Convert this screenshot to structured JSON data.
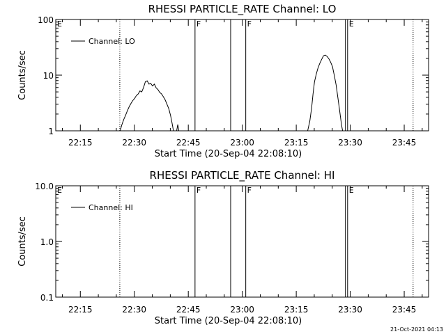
{
  "chart_data": [
    {
      "type": "line",
      "title": "RHESSI PARTICLE_RATE Channel: LO",
      "xlabel": "Start Time (20-Sep-04 22:08:10)",
      "ylabel": "Counts/sec",
      "yscale": "log",
      "ylim": [
        1,
        100
      ],
      "y_tick_labels": [
        "1",
        "10",
        "100"
      ],
      "y_tick_values": [
        1,
        10,
        100
      ],
      "x_tick_labels": [
        "22:15",
        "22:30",
        "22:45",
        "23:00",
        "23:15",
        "23:30",
        "23:45"
      ],
      "x_tick_minutes": [
        6.83,
        21.83,
        36.83,
        51.83,
        66.83,
        81.83,
        96.83
      ],
      "xlim_minutes": [
        0,
        103.6
      ],
      "legend": {
        "position": "top-left",
        "label": "Channel: LO"
      },
      "markers": [
        {
          "minute": 17.8,
          "style": "dotted",
          "label": ""
        },
        {
          "minute": 38.7,
          "style": "solid",
          "label": "F"
        },
        {
          "minute": 48.6,
          "style": "solid",
          "label": ""
        },
        {
          "minute": 52.8,
          "style": "solid",
          "label": "F"
        },
        {
          "minute": 80.5,
          "style": "solid",
          "label": ""
        },
        {
          "minute": 81.1,
          "style": "solid",
          "label": "E"
        },
        {
          "minute": 99.3,
          "style": "dotted",
          "label": ""
        }
      ],
      "start_label": "E",
      "series": [
        {
          "name": "Channel: LO",
          "segments": [
            [
              [
                17.9,
                1.0
              ],
              [
                18.4,
                1.3
              ],
              [
                18.9,
                1.6
              ],
              [
                19.4,
                1.9
              ],
              [
                19.9,
                2.3
              ],
              [
                20.4,
                2.7
              ],
              [
                20.9,
                3.1
              ],
              [
                21.4,
                3.5
              ],
              [
                21.9,
                3.8
              ],
              [
                22.4,
                4.3
              ],
              [
                22.9,
                4.6
              ],
              [
                23.4,
                5.2
              ],
              [
                23.9,
                5.0
              ],
              [
                24.4,
                6.0
              ],
              [
                24.9,
                7.6
              ],
              [
                25.4,
                7.9
              ],
              [
                25.9,
                6.9
              ],
              [
                26.4,
                7.1
              ],
              [
                26.9,
                6.4
              ],
              [
                27.4,
                6.9
              ],
              [
                27.9,
                5.9
              ],
              [
                28.4,
                5.5
              ],
              [
                28.9,
                4.9
              ],
              [
                29.4,
                4.6
              ],
              [
                29.9,
                4.1
              ],
              [
                30.4,
                3.6
              ],
              [
                30.9,
                3.0
              ],
              [
                31.4,
                2.5
              ],
              [
                31.9,
                1.9
              ],
              [
                32.3,
                1.4
              ],
              [
                32.7,
                1.0
              ]
            ],
            [
              [
                33.6,
                1.0
              ],
              [
                33.9,
                1.3
              ],
              [
                34.2,
                1.0
              ]
            ],
            [
              [
                70.0,
                1.0
              ],
              [
                70.6,
                1.5
              ],
              [
                71.1,
                2.6
              ],
              [
                71.5,
                4.6
              ],
              [
                71.9,
                7.6
              ],
              [
                72.4,
                10.5
              ],
              [
                72.9,
                13.7
              ],
              [
                73.4,
                16.4
              ],
              [
                73.9,
                19.2
              ],
              [
                74.4,
                22.3
              ],
              [
                74.9,
                22.9
              ],
              [
                75.4,
                21.7
              ],
              [
                75.9,
                19.6
              ],
              [
                76.4,
                17.1
              ],
              [
                76.9,
                14.2
              ],
              [
                77.4,
                9.9
              ],
              [
                77.9,
                6.7
              ],
              [
                78.4,
                3.9
              ],
              [
                78.9,
                2.3
              ],
              [
                79.4,
                1.3
              ],
              [
                79.7,
                1.0
              ]
            ]
          ]
        }
      ]
    },
    {
      "type": "line",
      "title": "RHESSI PARTICLE_RATE Channel: HI",
      "xlabel": "Start Time (20-Sep-04 22:08:10)",
      "ylabel": "Counts/sec",
      "yscale": "log",
      "ylim": [
        0.1,
        10.0
      ],
      "y_tick_labels": [
        "0.1",
        "1.0",
        "10.0"
      ],
      "y_tick_values": [
        0.1,
        1.0,
        10.0
      ],
      "x_tick_labels": [
        "22:15",
        "22:30",
        "22:45",
        "23:00",
        "23:15",
        "23:30",
        "23:45"
      ],
      "x_tick_minutes": [
        6.83,
        21.83,
        36.83,
        51.83,
        66.83,
        81.83,
        96.83
      ],
      "xlim_minutes": [
        0,
        103.6
      ],
      "legend": {
        "position": "top-left",
        "label": "Channel: HI"
      },
      "markers": [
        {
          "minute": 17.8,
          "style": "dotted",
          "label": ""
        },
        {
          "minute": 38.7,
          "style": "solid",
          "label": "F"
        },
        {
          "minute": 48.6,
          "style": "solid",
          "label": ""
        },
        {
          "minute": 52.8,
          "style": "solid",
          "label": "F"
        },
        {
          "minute": 80.5,
          "style": "solid",
          "label": ""
        },
        {
          "minute": 81.1,
          "style": "solid",
          "label": "E"
        },
        {
          "minute": 99.3,
          "style": "dotted",
          "label": ""
        }
      ],
      "start_label": "E",
      "series": [
        {
          "name": "Channel: HI",
          "segments": []
        }
      ]
    }
  ],
  "footer": {
    "timestamp": "21-Oct-2021 04:13"
  }
}
